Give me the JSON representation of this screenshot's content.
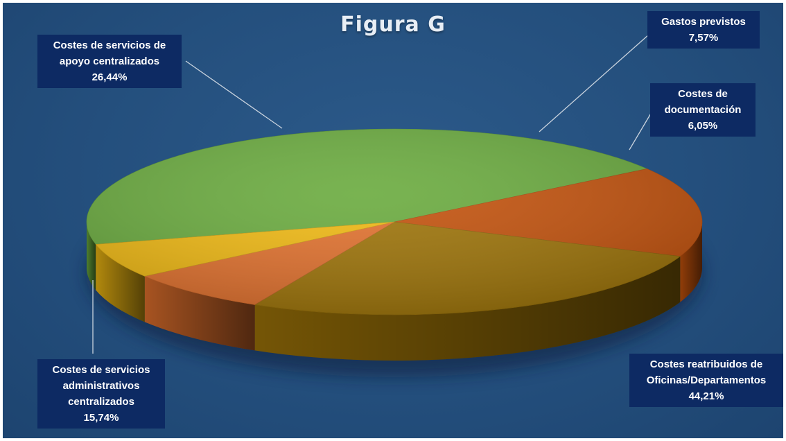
{
  "chart_data": {
    "type": "pie",
    "title": "Figura G",
    "slices": [
      {
        "label": "Costes reatribuidos de Oficinas/Departamentos",
        "value": 44.21,
        "value_text": "44,21%",
        "color": "#6aab3e"
      },
      {
        "label": "Costes de servicios administrativos centralizados",
        "value": 15.74,
        "value_text": "15,74%",
        "color": "#c4520c"
      },
      {
        "label": "Costes de servicios de apoyo centralizados",
        "value": 26.44,
        "value_text": "26,44%",
        "color": "#9e7408"
      },
      {
        "label": "Gastos previstos",
        "value": 7.57,
        "value_text": "7,57%",
        "color": "#e2712d"
      },
      {
        "label": "Costes de documentación",
        "value": 6.05,
        "value_text": "6,05%",
        "color": "#f0b912"
      }
    ]
  },
  "labels": {
    "reatribuidos": {
      "line1": "Costes reatribuidos de",
      "line2": "Oficinas/Departamentos",
      "pct": "44,21%"
    },
    "administrativos": {
      "line1": "Costes de servicios",
      "line2": "administrativos",
      "line3": "centralizados",
      "pct": "15,74%"
    },
    "apoyo": {
      "line1": "Costes de servicios de",
      "line2": "apoyo centralizados",
      "pct": "26,44%"
    },
    "gastos": {
      "line1": "Gastos previstos",
      "pct": "7,57%"
    },
    "documentacion": {
      "line1": "Costes de",
      "line2": "documentación",
      "pct": "6,05%"
    }
  }
}
